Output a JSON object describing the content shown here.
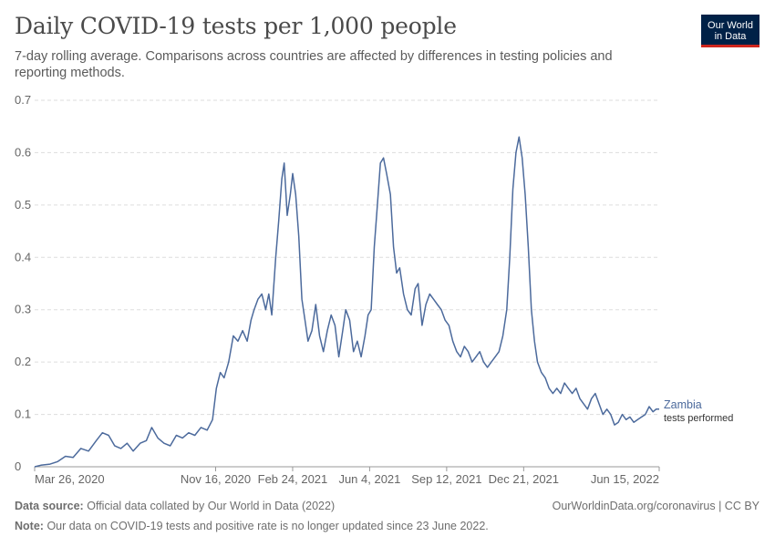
{
  "title": "Daily COVID-19 tests per 1,000 people",
  "subtitle": "7-day rolling average. Comparisons across countries are affected by differences in testing policies and reporting methods.",
  "logo": {
    "line1": "Our World",
    "line2": "in Data"
  },
  "footer": {
    "source_label": "Data source:",
    "source_text": "Official data collated by Our World in Data (2022)",
    "url_license": "OurWorldinData.org/coronavirus | CC BY",
    "note_label": "Note:",
    "note_text": "Our data on COVID-19 tests and positive rate is no longer updated since 23 June 2022."
  },
  "colors": {
    "series": "#4c6a9c",
    "grid": "#dddddd",
    "text": "#666666"
  },
  "chart_data": {
    "type": "line",
    "title": "Daily COVID-19 tests per 1,000 people",
    "ylim": [
      0,
      0.7
    ],
    "yticks": [
      0,
      0.1,
      0.2,
      0.3,
      0.4,
      0.5,
      0.6,
      0.7
    ],
    "ytick_labels": [
      "0",
      "0.1",
      "0.2",
      "0.3",
      "0.4",
      "0.5",
      "0.6",
      "0.7"
    ],
    "xlim": [
      "2020-03-26",
      "2022-06-15"
    ],
    "xticks": [
      "2020-03-26",
      "2020-11-16",
      "2021-02-24",
      "2021-06-04",
      "2021-09-12",
      "2021-12-21",
      "2022-06-15"
    ],
    "xtick_labels": [
      "Mar 26, 2020",
      "Nov 16, 2020",
      "Feb 24, 2021",
      "Jun 4, 2021",
      "Sep 12, 2021",
      "Dec 21, 2021",
      "Jun 15, 2022"
    ],
    "grid": "horizontal dashed",
    "series": [
      {
        "name": "Zambia",
        "label_line2": "tests performed",
        "color": "#4c6a9c",
        "points": [
          [
            "2020-03-26",
            0.0
          ],
          [
            "2020-04-03",
            0.003
          ],
          [
            "2020-04-15",
            0.005
          ],
          [
            "2020-04-25",
            0.01
          ],
          [
            "2020-05-05",
            0.02
          ],
          [
            "2020-05-15",
            0.018
          ],
          [
            "2020-05-25",
            0.035
          ],
          [
            "2020-06-04",
            0.03
          ],
          [
            "2020-06-14",
            0.05
          ],
          [
            "2020-06-22",
            0.065
          ],
          [
            "2020-06-30",
            0.06
          ],
          [
            "2020-07-08",
            0.04
          ],
          [
            "2020-07-16",
            0.035
          ],
          [
            "2020-07-24",
            0.045
          ],
          [
            "2020-08-01",
            0.03
          ],
          [
            "2020-08-10",
            0.045
          ],
          [
            "2020-08-18",
            0.05
          ],
          [
            "2020-08-25",
            0.075
          ],
          [
            "2020-09-02",
            0.055
          ],
          [
            "2020-09-10",
            0.045
          ],
          [
            "2020-09-18",
            0.04
          ],
          [
            "2020-09-26",
            0.06
          ],
          [
            "2020-10-04",
            0.055
          ],
          [
            "2020-10-12",
            0.065
          ],
          [
            "2020-10-20",
            0.06
          ],
          [
            "2020-10-28",
            0.075
          ],
          [
            "2020-11-05",
            0.07
          ],
          [
            "2020-11-12",
            0.09
          ],
          [
            "2020-11-17",
            0.15
          ],
          [
            "2020-11-22",
            0.18
          ],
          [
            "2020-11-27",
            0.17
          ],
          [
            "2020-12-03",
            0.2
          ],
          [
            "2020-12-09",
            0.25
          ],
          [
            "2020-12-15",
            0.24
          ],
          [
            "2020-12-21",
            0.26
          ],
          [
            "2020-12-27",
            0.24
          ],
          [
            "2021-01-01",
            0.28
          ],
          [
            "2021-01-05",
            0.3
          ],
          [
            "2021-01-10",
            0.32
          ],
          [
            "2021-01-15",
            0.33
          ],
          [
            "2021-01-20",
            0.3
          ],
          [
            "2021-01-24",
            0.33
          ],
          [
            "2021-01-28",
            0.29
          ],
          [
            "2021-02-02",
            0.4
          ],
          [
            "2021-02-06",
            0.47
          ],
          [
            "2021-02-10",
            0.55
          ],
          [
            "2021-02-13",
            0.58
          ],
          [
            "2021-02-17",
            0.48
          ],
          [
            "2021-02-21",
            0.52
          ],
          [
            "2021-02-24",
            0.56
          ],
          [
            "2021-02-28",
            0.52
          ],
          [
            "2021-03-04",
            0.44
          ],
          [
            "2021-03-08",
            0.32
          ],
          [
            "2021-03-12",
            0.28
          ],
          [
            "2021-03-16",
            0.24
          ],
          [
            "2021-03-21",
            0.26
          ],
          [
            "2021-03-26",
            0.31
          ],
          [
            "2021-03-31",
            0.25
          ],
          [
            "2021-04-05",
            0.22
          ],
          [
            "2021-04-10",
            0.26
          ],
          [
            "2021-04-15",
            0.29
          ],
          [
            "2021-04-20",
            0.27
          ],
          [
            "2021-04-25",
            0.21
          ],
          [
            "2021-04-30",
            0.26
          ],
          [
            "2021-05-04",
            0.3
          ],
          [
            "2021-05-09",
            0.28
          ],
          [
            "2021-05-14",
            0.22
          ],
          [
            "2021-05-19",
            0.24
          ],
          [
            "2021-05-24",
            0.21
          ],
          [
            "2021-05-29",
            0.25
          ],
          [
            "2021-06-02",
            0.29
          ],
          [
            "2021-06-06",
            0.3
          ],
          [
            "2021-06-10",
            0.42
          ],
          [
            "2021-06-14",
            0.5
          ],
          [
            "2021-06-18",
            0.58
          ],
          [
            "2021-06-22",
            0.59
          ],
          [
            "2021-06-26",
            0.56
          ],
          [
            "2021-07-01",
            0.52
          ],
          [
            "2021-07-05",
            0.42
          ],
          [
            "2021-07-09",
            0.37
          ],
          [
            "2021-07-13",
            0.38
          ],
          [
            "2021-07-18",
            0.33
          ],
          [
            "2021-07-23",
            0.3
          ],
          [
            "2021-07-28",
            0.29
          ],
          [
            "2021-08-02",
            0.34
          ],
          [
            "2021-08-06",
            0.35
          ],
          [
            "2021-08-11",
            0.27
          ],
          [
            "2021-08-16",
            0.31
          ],
          [
            "2021-08-21",
            0.33
          ],
          [
            "2021-08-26",
            0.32
          ],
          [
            "2021-08-31",
            0.31
          ],
          [
            "2021-09-05",
            0.3
          ],
          [
            "2021-09-10",
            0.28
          ],
          [
            "2021-09-15",
            0.27
          ],
          [
            "2021-09-20",
            0.24
          ],
          [
            "2021-09-25",
            0.22
          ],
          [
            "2021-09-30",
            0.21
          ],
          [
            "2021-10-05",
            0.23
          ],
          [
            "2021-10-10",
            0.22
          ],
          [
            "2021-10-15",
            0.2
          ],
          [
            "2021-10-20",
            0.21
          ],
          [
            "2021-10-25",
            0.22
          ],
          [
            "2021-10-30",
            0.2
          ],
          [
            "2021-11-04",
            0.19
          ],
          [
            "2021-11-09",
            0.2
          ],
          [
            "2021-11-14",
            0.21
          ],
          [
            "2021-11-19",
            0.22
          ],
          [
            "2021-11-24",
            0.25
          ],
          [
            "2021-11-29",
            0.3
          ],
          [
            "2021-12-03",
            0.4
          ],
          [
            "2021-12-07",
            0.53
          ],
          [
            "2021-12-11",
            0.6
          ],
          [
            "2021-12-15",
            0.63
          ],
          [
            "2021-12-19",
            0.59
          ],
          [
            "2021-12-23",
            0.52
          ],
          [
            "2021-12-27",
            0.42
          ],
          [
            "2021-12-31",
            0.3
          ],
          [
            "2022-01-04",
            0.24
          ],
          [
            "2022-01-08",
            0.2
          ],
          [
            "2022-01-13",
            0.18
          ],
          [
            "2022-01-18",
            0.17
          ],
          [
            "2022-01-23",
            0.15
          ],
          [
            "2022-01-28",
            0.14
          ],
          [
            "2022-02-02",
            0.15
          ],
          [
            "2022-02-07",
            0.14
          ],
          [
            "2022-02-12",
            0.16
          ],
          [
            "2022-02-17",
            0.15
          ],
          [
            "2022-02-22",
            0.14
          ],
          [
            "2022-02-27",
            0.15
          ],
          [
            "2022-03-04",
            0.13
          ],
          [
            "2022-03-09",
            0.12
          ],
          [
            "2022-03-14",
            0.11
          ],
          [
            "2022-03-19",
            0.13
          ],
          [
            "2022-03-24",
            0.14
          ],
          [
            "2022-03-29",
            0.12
          ],
          [
            "2022-04-03",
            0.1
          ],
          [
            "2022-04-08",
            0.11
          ],
          [
            "2022-04-13",
            0.1
          ],
          [
            "2022-04-18",
            0.08
          ],
          [
            "2022-04-23",
            0.085
          ],
          [
            "2022-04-28",
            0.1
          ],
          [
            "2022-05-03",
            0.09
          ],
          [
            "2022-05-08",
            0.095
          ],
          [
            "2022-05-13",
            0.085
          ],
          [
            "2022-05-18",
            0.09
          ],
          [
            "2022-05-23",
            0.095
          ],
          [
            "2022-05-28",
            0.1
          ],
          [
            "2022-06-02",
            0.115
          ],
          [
            "2022-06-07",
            0.105
          ],
          [
            "2022-06-11",
            0.11
          ],
          [
            "2022-06-15",
            0.11
          ]
        ]
      }
    ]
  }
}
